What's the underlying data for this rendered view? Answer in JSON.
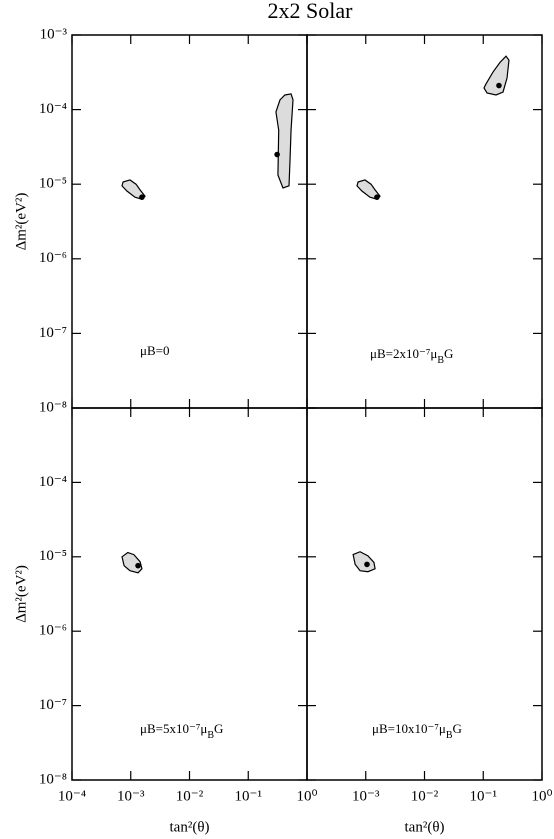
{
  "title": "2x2 Solar",
  "chart_data": [
    {
      "type": "contour",
      "log_x": true,
      "log_y": true,
      "annotation": [
        {
          "text": "μB=0"
        }
      ],
      "ylabel": "Δm²(eV²)",
      "xlim": [
        0.0001,
        1
      ],
      "ylim": [
        1e-08,
        0.001
      ],
      "xticks": [
        0.0001,
        0.001,
        0.01,
        0.1,
        1
      ],
      "show_xtick_labels": false,
      "yticks": [
        {
          "value": 0.001,
          "label": "10⁻³"
        },
        {
          "value": 0.0001,
          "label": "10⁻⁴"
        },
        {
          "value": 1e-05,
          "label": "10⁻⁵"
        },
        {
          "value": 1e-06,
          "label": "10⁻⁶"
        },
        {
          "value": 1e-07,
          "label": "10⁻⁷"
        },
        {
          "value": 1e-08,
          "label": "10⁻⁸"
        }
      ],
      "show_ytick_labels": true,
      "region_color": "#dcdcdc",
      "regions": [
        {
          "x": [
            0.00074,
            0.00097,
            0.00123,
            0.00144,
            0.00175,
            0.00155,
            0.00118,
            0.00086,
            0.00071
          ],
          "y": [
            1.07e-05,
            1.14e-05,
            1e-05,
            8.4e-06,
            6.9e-06,
            6.3e-06,
            6.7e-06,
            8.1e-06,
            9.5e-06
          ]
        },
        {
          "x": [
            0.347,
            0.42,
            0.535,
            0.578,
            0.535,
            0.514,
            0.494,
            0.39,
            0.32,
            0.33,
            0.296
          ],
          "y": [
            0.000135,
            0.000157,
            0.000162,
            0.000135,
            5.3e-05,
            2.1e-05,
            9.5e-06,
            8.9e-06,
            1.33e-05,
            5.3e-05,
            9.3e-05
          ]
        }
      ],
      "best_fit": {
        "x": [
          0.00155,
          0.31
        ],
        "y": [
          6.7e-06,
          2.5e-05
        ]
      }
    },
    {
      "type": "contour",
      "log_x": true,
      "log_y": true,
      "annotation": [
        {
          "text": "μB=2x10⁻⁷μ"
        },
        {
          "text": "B",
          "sub": true
        },
        {
          "text": "G"
        }
      ],
      "xlim": [
        0.0001,
        1
      ],
      "ylim": [
        1e-08,
        0.001
      ],
      "xticks": [
        0.0001,
        0.001,
        0.01,
        0.1,
        1
      ],
      "show_xtick_labels": false,
      "yticks": [
        0.001,
        0.0001,
        1e-05,
        1e-06,
        1e-07,
        1e-08
      ],
      "show_ytick_labels": false,
      "region_color": "#dcdcdc",
      "regions": [
        {
          "x": [
            0.00074,
            0.00097,
            0.00123,
            0.00144,
            0.00175,
            0.00155,
            0.00118,
            0.00086,
            0.00071
          ],
          "y": [
            1.07e-05,
            1.14e-05,
            1e-05,
            8.4e-06,
            6.9e-06,
            6.3e-06,
            6.7e-06,
            8.1e-06,
            9.5e-06
          ]
        },
        {
          "x": [
            0.111,
            0.147,
            0.193,
            0.244,
            0.274,
            0.254,
            0.217,
            0.165,
            0.116,
            0.103
          ],
          "y": [
            0.00022,
            0.00032,
            0.00043,
            0.00052,
            0.00046,
            0.000265,
            0.000172,
            0.000157,
            0.000167,
            0.000195
          ]
        }
      ],
      "best_fit": {
        "x": [
          0.00155,
          0.185
        ],
        "y": [
          6.7e-06,
          0.00021
        ]
      }
    },
    {
      "type": "contour",
      "log_x": true,
      "log_y": true,
      "annotation": [
        {
          "text": "μB=5x10⁻⁷μ"
        },
        {
          "text": "B",
          "sub": true
        },
        {
          "text": "G"
        }
      ],
      "xlabel": "tan²(θ)",
      "ylabel": "Δm²(eV²)",
      "xlim": [
        0.0001,
        1
      ],
      "ylim": [
        1e-08,
        0.001
      ],
      "xticks": [
        {
          "value": 0.0001,
          "label": "10⁻⁴"
        },
        {
          "value": 0.001,
          "label": "10⁻³"
        },
        {
          "value": 0.01,
          "label": "10⁻²"
        },
        {
          "value": 0.1,
          "label": "10⁻¹"
        },
        {
          "value": 1,
          "label": "10⁰"
        }
      ],
      "show_xtick_labels": true,
      "yticks": [
        {
          "value": 0.0001,
          "label": "10⁻⁴"
        },
        {
          "value": 1e-05,
          "label": "10⁻⁵"
        },
        {
          "value": 1e-06,
          "label": "10⁻⁶"
        },
        {
          "value": 1e-07,
          "label": "10⁻⁷"
        },
        {
          "value": 1e-08,
          "label": "10⁻⁸"
        }
      ],
      "show_ytick_labels": true,
      "region_color": "#dcdcdc",
      "regions": [
        {
          "x": [
            0.00071,
            0.00089,
            0.00113,
            0.00144,
            0.00155,
            0.00133,
            0.00097,
            0.00077
          ],
          "y": [
            1e-05,
            1.14e-05,
            1.07e-05,
            8.6e-06,
            6.9e-06,
            6.1e-06,
            6.5e-06,
            7.6e-06
          ]
        }
      ],
      "best_fit": {
        "x": [
          0.00133
        ],
        "y": [
          7.6e-06
        ]
      }
    },
    {
      "type": "contour",
      "log_x": true,
      "log_y": true,
      "annotation": [
        {
          "text": "μB=10x10⁻⁷μ"
        },
        {
          "text": "B",
          "sub": true
        },
        {
          "text": "G"
        }
      ],
      "xlabel": "tan²(θ)",
      "xlim": [
        0.0001,
        1
      ],
      "ylim": [
        1e-08,
        0.001
      ],
      "xticks": [
        {
          "value": 0.001,
          "label": "10⁻³"
        },
        {
          "value": 0.01,
          "label": "10⁻²"
        },
        {
          "value": 0.1,
          "label": "10⁻¹"
        },
        {
          "value": 1,
          "label": "10⁰"
        }
      ],
      "show_xtick_labels": true,
      "yticks": [
        0.001,
        0.0001,
        1e-05,
        1e-06,
        1e-07,
        1e-08
      ],
      "show_ytick_labels": false,
      "region_color": "#dcdcdc",
      "regions": [
        {
          "x": [
            0.00061,
            0.0008,
            0.00109,
            0.00138,
            0.00144,
            0.00109,
            0.0008,
            0.00066
          ],
          "y": [
            1.07e-05,
            1.17e-05,
            1.03e-05,
            8.4e-06,
            6.9e-06,
            6.3e-06,
            6.5e-06,
            7.9e-06
          ]
        }
      ],
      "best_fit": {
        "x": [
          0.00105
        ],
        "y": [
          7.9e-06
        ]
      }
    }
  ]
}
